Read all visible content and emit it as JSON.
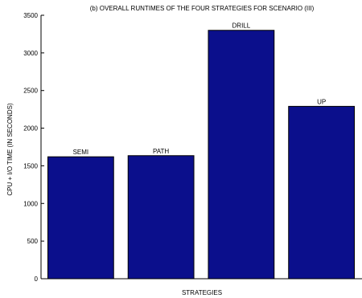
{
  "chart_data": {
    "type": "bar",
    "title": "(b) OVERALL RUNTIMES OF THE FOUR STRATEGIES FOR SCENARIO (III)",
    "xlabel": "STRATEGIES",
    "ylabel": "CPU + I/O TIME (IN SECONDS)",
    "categories": [
      "SEMI",
      "PATH",
      "DRILL",
      "UP"
    ],
    "values": [
      1620,
      1635,
      3300,
      2290
    ],
    "ylim": [
      0,
      3500
    ],
    "yticks": [
      0,
      500,
      1000,
      1500,
      2000,
      2500,
      3000,
      3500
    ],
    "bar_color": "#0b0f8c",
    "grid": false,
    "legend": "none"
  }
}
